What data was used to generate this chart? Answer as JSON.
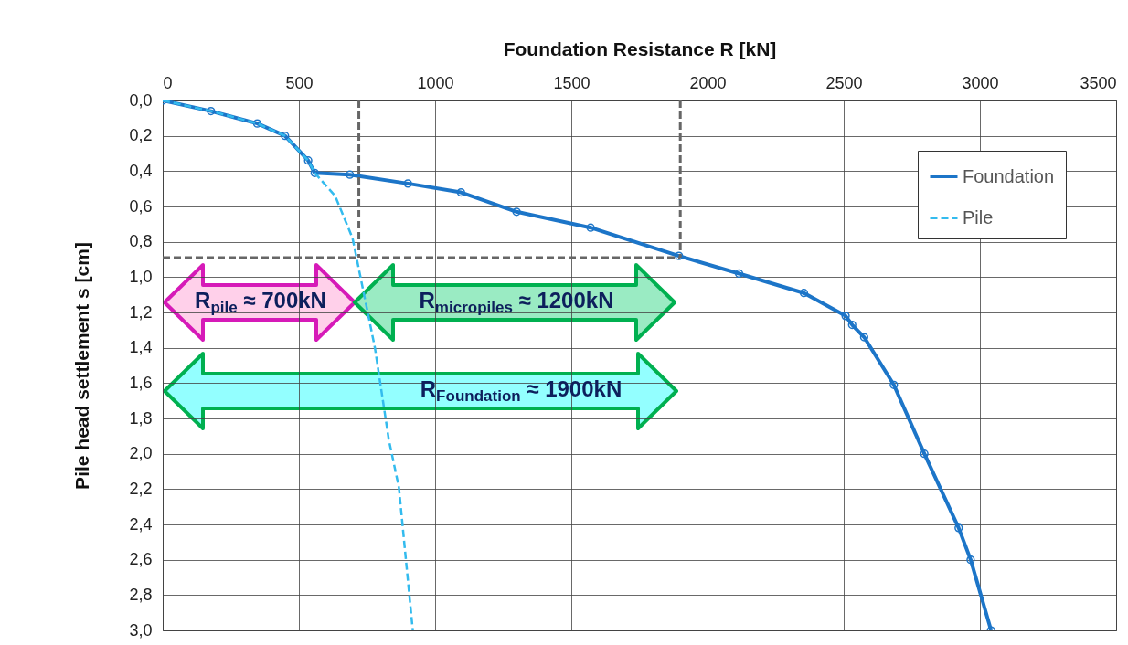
{
  "chart_data": {
    "type": "line",
    "xlabel": "Foundation Resistance R [kN]",
    "ylabel": "Pile head settlement s [cm]",
    "xlim": [
      0,
      3500
    ],
    "xticks": [
      0,
      500,
      1000,
      1500,
      2000,
      2500,
      3000,
      3500
    ],
    "ylim": [
      3.0,
      0
    ],
    "yticks": [
      {
        "value": 0,
        "label": "0,0"
      },
      {
        "value": 0.2,
        "label": "0,2"
      },
      {
        "value": 0.4,
        "label": "0,4"
      },
      {
        "value": 0.6,
        "label": "0,6"
      },
      {
        "value": 0.8,
        "label": "0,8"
      },
      {
        "value": 1.0,
        "label": "1,0"
      },
      {
        "value": 1.2,
        "label": "1,2"
      },
      {
        "value": 1.4,
        "label": "1,4"
      },
      {
        "value": 1.6,
        "label": "1,6"
      },
      {
        "value": 1.8,
        "label": "1,8"
      },
      {
        "value": 2.0,
        "label": "2,0"
      },
      {
        "value": 2.2,
        "label": "2,2"
      },
      {
        "value": 2.4,
        "label": "2,4"
      },
      {
        "value": 2.6,
        "label": "2,6"
      },
      {
        "value": 2.8,
        "label": "2,8"
      },
      {
        "value": 3.0,
        "label": "3,0"
      }
    ],
    "grid": true,
    "legend": "top right",
    "series": [
      {
        "name": "Foundation",
        "color": "#1c75c8",
        "marker": "circle",
        "x": [
          0,
          177,
          347,
          449,
          534,
          558,
          687,
          900,
          1095,
          1299,
          1571,
          1895,
          2116,
          2354,
          2507,
          2531,
          2575,
          2684,
          2796,
          2922,
          2966,
          3041
        ],
        "values": [
          0,
          0.06,
          0.13,
          0.2,
          0.34,
          0.41,
          0.42,
          0.47,
          0.52,
          0.63,
          0.72,
          0.88,
          0.98,
          1.09,
          1.22,
          1.27,
          1.34,
          1.61,
          2.0,
          2.42,
          2.6,
          3.0
        ]
      },
      {
        "name": "Pile",
        "color": "#33bbee",
        "line_style": "dashed",
        "x": [
          0,
          177,
          347,
          449,
          534,
          558,
          633,
          697,
          779,
          830,
          867,
          918
        ],
        "values": [
          0,
          0.06,
          0.13,
          0.2,
          0.34,
          0.41,
          0.54,
          0.78,
          1.4,
          1.92,
          2.19,
          3.0
        ]
      }
    ],
    "ref_lines": [
      {
        "axis": "x",
        "value": 720,
        "color": "#666666",
        "line_style": "dashed"
      },
      {
        "axis": "x",
        "value": 1900,
        "color": "#666666",
        "line_style": "dashed"
      },
      {
        "axis": "y",
        "value": 0.89,
        "color": "#666666",
        "line_style": "dashed"
      }
    ],
    "annotations": [
      "R$_{pile}$ ≈ 700kN",
      "R$_{micropiles}$ ≈ 1200kN",
      "R$_{Foundation}$ ≈ 1900kN"
    ]
  }
}
